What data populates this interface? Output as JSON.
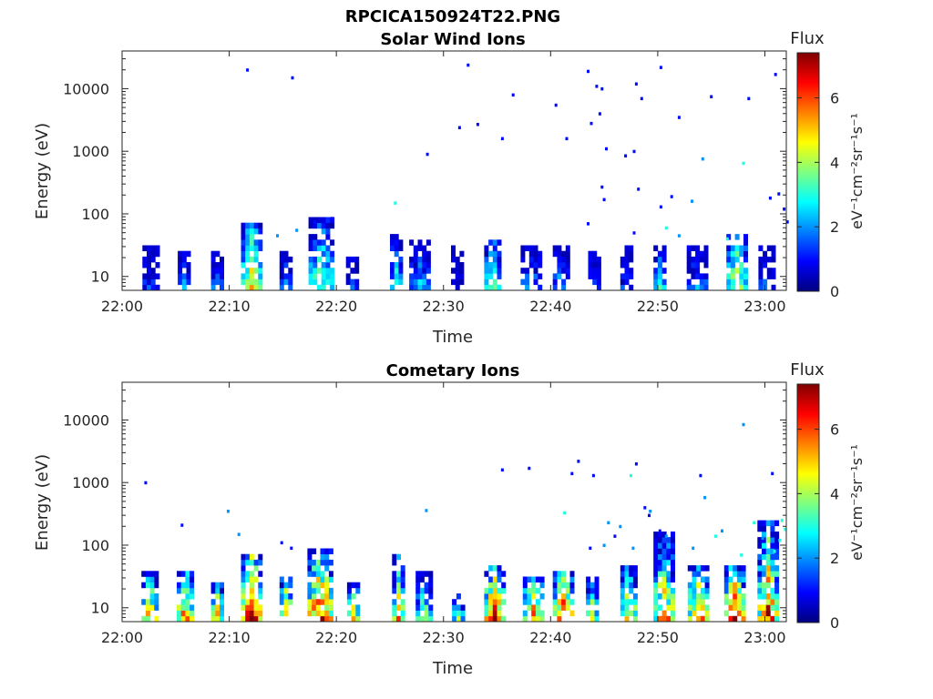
{
  "figure": {
    "title": "RPCICA150924T22.PNG"
  },
  "colormap": [
    "#00007f",
    "#0000ff",
    "#007fff",
    "#00ffff",
    "#7fff7f",
    "#ffff00",
    "#ff7f00",
    "#ff0000",
    "#7f0000"
  ],
  "chart_data": [
    {
      "type": "heatmap",
      "title": "Solar Wind Ions",
      "xlabel": "Time",
      "ylabel": "Energy (eV)",
      "x_ticks": [
        "22:00",
        "22:10",
        "22:20",
        "22:30",
        "22:40",
        "22:50",
        "23:00"
      ],
      "x_range_minutes": [
        0,
        62
      ],
      "y_scale": "log",
      "y_ticks": [
        "10",
        "100",
        "1000",
        "10000"
      ],
      "y_range": [
        6,
        40000
      ],
      "colorbar": {
        "title": "Flux",
        "unit_label": "eV⁻¹cm⁻²sr⁻¹s⁻¹",
        "ticks": [
          "0",
          "2",
          "4",
          "6"
        ],
        "range": [
          0,
          7.4
        ]
      },
      "clusters": [
        {
          "t": 2.7,
          "w": 1.6,
          "emax": 28,
          "peak": 1.3,
          "spread": 1.6
        },
        {
          "t": 5.8,
          "w": 1.2,
          "emax": 24,
          "peak": 2.2,
          "spread": 1.2
        },
        {
          "t": 8.8,
          "w": 1.0,
          "emax": 22,
          "peak": 2.0,
          "spread": 1.2
        },
        {
          "t": 12.0,
          "w": 1.8,
          "emax": 65,
          "peak": 4.8,
          "spread": 1.6
        },
        {
          "t": 15.2,
          "w": 1.0,
          "emax": 25,
          "peak": 2.0,
          "spread": 1.2
        },
        {
          "t": 18.5,
          "w": 2.2,
          "emax": 80,
          "peak": 3.8,
          "spread": 1.6
        },
        {
          "t": 21.6,
          "w": 1.4,
          "emax": 20,
          "peak": 1.5,
          "spread": 1.2
        },
        {
          "t": 25.5,
          "w": 1.0,
          "emax": 40,
          "peak": 3.2,
          "spread": 1.4
        },
        {
          "t": 27.8,
          "w": 2.0,
          "emax": 35,
          "peak": 2.4,
          "spread": 1.6
        },
        {
          "t": 31.2,
          "w": 1.0,
          "emax": 30,
          "peak": 0.8,
          "spread": 0.6
        },
        {
          "t": 34.6,
          "w": 1.6,
          "emax": 35,
          "peak": 4.0,
          "spread": 1.5
        },
        {
          "t": 38.2,
          "w": 2.0,
          "emax": 28,
          "peak": 2.2,
          "spread": 1.5
        },
        {
          "t": 41.0,
          "w": 1.6,
          "emax": 30,
          "peak": 2.4,
          "spread": 1.5
        },
        {
          "t": 44.0,
          "w": 1.0,
          "emax": 22,
          "peak": 1.8,
          "spread": 1.0
        },
        {
          "t": 47.2,
          "w": 1.4,
          "emax": 28,
          "peak": 1.6,
          "spread": 1.2
        },
        {
          "t": 50.3,
          "w": 1.4,
          "emax": 30,
          "peak": 3.0,
          "spread": 1.5
        },
        {
          "t": 53.6,
          "w": 1.8,
          "emax": 30,
          "peak": 2.2,
          "spread": 1.6
        },
        {
          "t": 57.3,
          "w": 1.8,
          "emax": 40,
          "peak": 4.6,
          "spread": 1.6
        },
        {
          "t": 60.2,
          "w": 1.6,
          "emax": 30,
          "peak": 1.8,
          "spread": 1.4
        }
      ],
      "scatter": [
        [
          11.7,
          20000,
          1
        ],
        [
          15.9,
          15000,
          1
        ],
        [
          32.3,
          24000,
          1
        ],
        [
          36.5,
          8000,
          1
        ],
        [
          40.5,
          5500,
          1
        ],
        [
          43.5,
          19000,
          1
        ],
        [
          44.3,
          11000,
          1
        ],
        [
          44.8,
          10000,
          1
        ],
        [
          48.0,
          12000,
          1
        ],
        [
          48.5,
          7000,
          1
        ],
        [
          50.3,
          22000,
          1
        ],
        [
          52.0,
          3500,
          1
        ],
        [
          55.0,
          7500,
          1
        ],
        [
          58.5,
          7000,
          1
        ],
        [
          61.0,
          17000,
          1
        ],
        [
          31.5,
          2400,
          1
        ],
        [
          33.2,
          2700,
          1
        ],
        [
          35.5,
          1600,
          1
        ],
        [
          41.5,
          1600,
          1
        ],
        [
          43.8,
          2800,
          1
        ],
        [
          44.6,
          4000,
          1
        ],
        [
          45.2,
          1100,
          1
        ],
        [
          47.0,
          850,
          1
        ],
        [
          47.8,
          1000,
          1
        ],
        [
          28.5,
          900,
          1
        ],
        [
          25.5,
          150,
          3
        ],
        [
          44.8,
          270,
          1
        ],
        [
          45.0,
          170,
          1
        ],
        [
          48.2,
          250,
          1
        ],
        [
          50.3,
          130,
          1
        ],
        [
          51.3,
          190,
          1
        ],
        [
          53.2,
          160,
          2
        ],
        [
          54.2,
          760,
          2
        ],
        [
          58.0,
          650,
          3
        ],
        [
          60.5,
          180,
          1
        ],
        [
          61.3,
          210,
          1
        ],
        [
          61.8,
          120,
          1
        ],
        [
          62.1,
          75,
          1
        ],
        [
          43.5,
          70,
          1
        ],
        [
          50.8,
          60,
          3
        ],
        [
          18.0,
          75,
          1
        ],
        [
          19.6,
          85,
          1
        ],
        [
          16.3,
          55,
          2
        ],
        [
          14.5,
          45,
          2
        ],
        [
          52.0,
          45,
          2
        ],
        [
          47.8,
          50,
          1
        ],
        [
          56.5,
          40,
          3
        ]
      ]
    },
    {
      "type": "heatmap",
      "title": "Cometary Ions",
      "xlabel": "Time",
      "ylabel": "Energy (eV)",
      "x_ticks": [
        "22:00",
        "22:10",
        "22:20",
        "22:30",
        "22:40",
        "22:50",
        "23:00"
      ],
      "x_range_minutes": [
        0,
        62
      ],
      "y_scale": "log",
      "y_ticks": [
        "10",
        "100",
        "1000",
        "10000"
      ],
      "y_range": [
        6,
        40000
      ],
      "colorbar": {
        "title": "Flux",
        "unit_label": "eV⁻¹cm⁻²sr⁻¹s⁻¹",
        "ticks": [
          "0",
          "2",
          "4",
          "6"
        ],
        "range": [
          0,
          7.4
        ]
      },
      "clusters": [
        {
          "t": 2.6,
          "w": 1.6,
          "emax": 35,
          "peak": 5.3,
          "spread": 2.4
        },
        {
          "t": 5.9,
          "w": 1.6,
          "emax": 35,
          "peak": 6.2,
          "spread": 2.4
        },
        {
          "t": 8.9,
          "w": 1.2,
          "emax": 22,
          "peak": 5.3,
          "spread": 2.0
        },
        {
          "t": 12.1,
          "w": 2.0,
          "emax": 70,
          "peak": 7.2,
          "spread": 2.6
        },
        {
          "t": 15.3,
          "w": 1.2,
          "emax": 30,
          "peak": 5.8,
          "spread": 2.2
        },
        {
          "t": 18.5,
          "w": 2.4,
          "emax": 85,
          "peak": 6.8,
          "spread": 2.8
        },
        {
          "t": 21.7,
          "w": 1.4,
          "emax": 25,
          "peak": 5.0,
          "spread": 2.2
        },
        {
          "t": 25.8,
          "w": 1.2,
          "emax": 60,
          "peak": 5.2,
          "spread": 2.4
        },
        {
          "t": 28.2,
          "w": 1.6,
          "emax": 35,
          "peak": 4.2,
          "spread": 2.2
        },
        {
          "t": 31.3,
          "w": 1.0,
          "emax": 15,
          "peak": 3.5,
          "spread": 1.6
        },
        {
          "t": 34.8,
          "w": 2.0,
          "emax": 40,
          "peak": 7.1,
          "spread": 2.6
        },
        {
          "t": 38.3,
          "w": 1.8,
          "emax": 30,
          "peak": 6.0,
          "spread": 2.4
        },
        {
          "t": 41.2,
          "w": 2.0,
          "emax": 35,
          "peak": 6.6,
          "spread": 2.4
        },
        {
          "t": 44.0,
          "w": 1.4,
          "emax": 30,
          "peak": 4.4,
          "spread": 2.2
        },
        {
          "t": 47.3,
          "w": 1.6,
          "emax": 40,
          "peak": 5.8,
          "spread": 2.4
        },
        {
          "t": 50.6,
          "w": 2.0,
          "emax": 160,
          "peak": 5.7,
          "spread": 3.0
        },
        {
          "t": 53.8,
          "w": 2.0,
          "emax": 40,
          "peak": 6.2,
          "spread": 2.6
        },
        {
          "t": 57.2,
          "w": 2.0,
          "emax": 40,
          "peak": 7.0,
          "spread": 2.6
        },
        {
          "t": 60.2,
          "w": 1.8,
          "emax": 220,
          "peak": 6.4,
          "spread": 3.0
        }
      ],
      "scatter": [
        [
          2.2,
          1000,
          1
        ],
        [
          5.6,
          210,
          1
        ],
        [
          9.9,
          350,
          2
        ],
        [
          10.9,
          150,
          2
        ],
        [
          14.9,
          110,
          1
        ],
        [
          15.8,
          90,
          1
        ],
        [
          28.4,
          360,
          2
        ],
        [
          35.5,
          1600,
          1
        ],
        [
          38.0,
          1700,
          1
        ],
        [
          42.0,
          1400,
          1
        ],
        [
          42.6,
          2200,
          1
        ],
        [
          44.0,
          1300,
          1
        ],
        [
          47.5,
          1300,
          3
        ],
        [
          48.0,
          2000,
          1
        ],
        [
          48.8,
          400,
          1
        ],
        [
          49.3,
          350,
          2
        ],
        [
          54.0,
          1300,
          1
        ],
        [
          54.4,
          580,
          2
        ],
        [
          58.0,
          8500,
          2
        ],
        [
          59.0,
          230,
          3
        ],
        [
          60.7,
          1400,
          1
        ],
        [
          56.0,
          170,
          2
        ],
        [
          49.2,
          300,
          1
        ],
        [
          41.3,
          330,
          3
        ],
        [
          45.4,
          230,
          2
        ],
        [
          46.5,
          200,
          2
        ],
        [
          43.7,
          90,
          1
        ],
        [
          45.0,
          100,
          2
        ],
        [
          46.0,
          140,
          1
        ],
        [
          47.7,
          90,
          2
        ],
        [
          50.2,
          170,
          1
        ],
        [
          50.8,
          140,
          2
        ],
        [
          53.3,
          90,
          2
        ],
        [
          55.4,
          140,
          3
        ],
        [
          57.8,
          70,
          3
        ],
        [
          61.6,
          250,
          3
        ],
        [
          61.9,
          180,
          3
        ],
        [
          61.4,
          120,
          3
        ],
        [
          60.9,
          80,
          3
        ],
        [
          59.8,
          130,
          2
        ]
      ]
    }
  ]
}
